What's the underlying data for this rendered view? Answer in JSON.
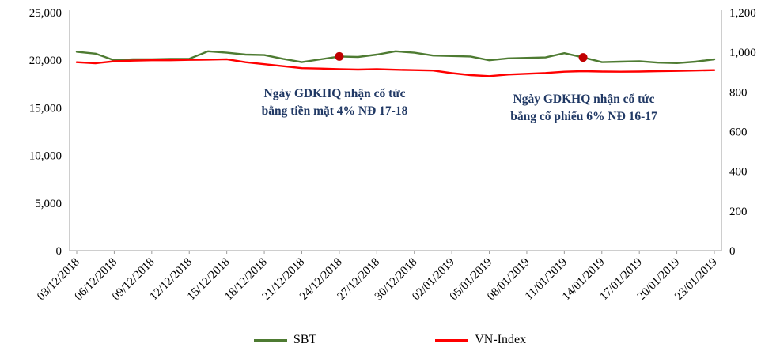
{
  "chart_data": {
    "type": "line",
    "title": "",
    "categories": [
      "03/12/2018",
      "06/12/2018",
      "09/12/2018",
      "12/12/2018",
      "15/12/2018",
      "18/12/2018",
      "21/12/2018",
      "24/12/2018",
      "27/12/2018",
      "30/12/2018",
      "02/01/2019",
      "05/01/2019",
      "08/01/2019",
      "11/01/2019",
      "14/01/2019",
      "17/01/2019",
      "20/01/2019",
      "23/01/2019"
    ],
    "points_per_label": 2,
    "series": [
      {
        "name": "SBT",
        "axis": "left",
        "color": "#4E7B32",
        "values": [
          20900,
          20700,
          20000,
          20100,
          20100,
          20150,
          20150,
          20950,
          20800,
          20600,
          20550,
          20150,
          19800,
          20100,
          20400,
          20350,
          20600,
          20950,
          20800,
          20500,
          20450,
          20400,
          20000,
          20200,
          20250,
          20300,
          20750,
          20300,
          19800,
          19850,
          19900,
          19750,
          19700,
          19850,
          20100
        ]
      },
      {
        "name": "VN-Index",
        "axis": "right",
        "color": "#FF0000",
        "values": [
          950,
          945,
          955,
          958,
          960,
          960,
          962,
          963,
          965,
          950,
          940,
          930,
          920,
          918,
          915,
          913,
          915,
          912,
          910,
          908,
          895,
          885,
          880,
          888,
          892,
          896,
          902,
          905,
          903,
          902,
          903,
          905,
          906,
          908,
          910
        ]
      }
    ],
    "left_axis": {
      "min": 0,
      "max": 25000,
      "ticks": [
        "0",
        "5,000",
        "10,000",
        "15,000",
        "20,000",
        "25,000"
      ]
    },
    "right_axis": {
      "min": 0,
      "max": 1200,
      "ticks": [
        "0",
        "200",
        "400",
        "600",
        "800",
        "1,000",
        "1,200"
      ]
    },
    "markers": {
      "color": "#C00000",
      "points": [
        {
          "series": "SBT",
          "index": 14,
          "value": 20400,
          "date": "24/12/2018"
        },
        {
          "series": "SBT",
          "index": 27,
          "value": 20300,
          "date": "13/01/2019"
        }
      ]
    },
    "legend": {
      "position": "bottom",
      "items": [
        "SBT",
        "VN-Index"
      ]
    },
    "grid": "off"
  },
  "annotations": [
    {
      "line1": "Ngày GDKHQ nhận cổ tức",
      "line2": "bằng tiền mặt 4% NĐ 17-18"
    },
    {
      "line1": "Ngày GDKHQ nhận cổ tức",
      "line2": "bằng cổ phiếu 6% NĐ 16-17"
    }
  ]
}
